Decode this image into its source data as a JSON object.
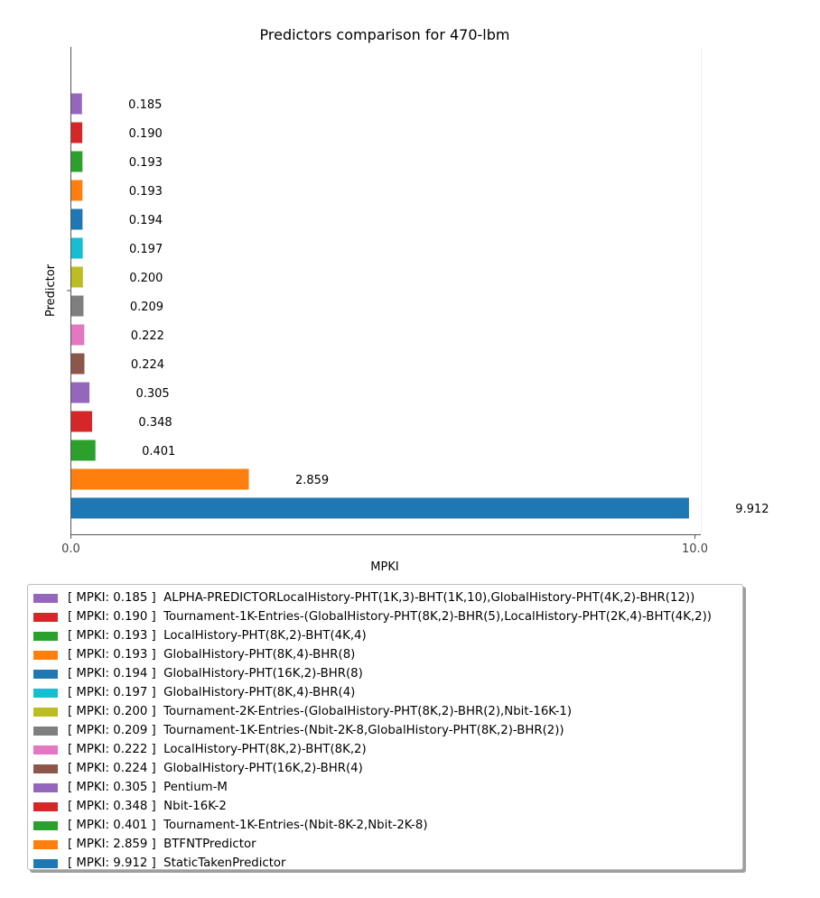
{
  "chart_data": {
    "type": "bar",
    "orientation": "horizontal",
    "title": "Predictors comparison for 470-lbm",
    "xlabel": "MPKI",
    "ylabel": "Predictor",
    "xlim": [
      0,
      10.3
    ],
    "xticks": [
      0.0,
      10.0
    ],
    "xtick_labels": [
      "0.0",
      "10.0"
    ],
    "grid": false,
    "legend_position": "bottom",
    "legend_prefix": "[ MPKI: ",
    "legend_suffix": " ]",
    "bars": [
      {
        "name": "ALPHA-PREDICTORLocalHistory-PHT(1K,3)-BHT(1K,10),GlobalHistory-PHT(4K,2)-BHR(12))",
        "value": 0.185,
        "label": "0.185",
        "color": "#9467bd"
      },
      {
        "name": "Tournament-1K-Entries-(GlobalHistory-PHT(8K,2)-BHR(5),LocalHistory-PHT(2K,4)-BHT(4K,2))",
        "value": 0.19,
        "label": "0.190",
        "color": "#d62728"
      },
      {
        "name": "LocalHistory-PHT(8K,2)-BHT(4K,4)",
        "value": 0.193,
        "label": "0.193",
        "color": "#2ca02c"
      },
      {
        "name": "GlobalHistory-PHT(8K,4)-BHR(8)",
        "value": 0.193,
        "label": "0.193",
        "color": "#ff7f0e"
      },
      {
        "name": "GlobalHistory-PHT(16K,2)-BHR(8)",
        "value": 0.194,
        "label": "0.194",
        "color": "#1f77b4"
      },
      {
        "name": "GlobalHistory-PHT(8K,4)-BHR(4)",
        "value": 0.197,
        "label": "0.197",
        "color": "#17becf"
      },
      {
        "name": "Tournament-2K-Entries-(GlobalHistory-PHT(8K,2)-BHR(2),Nbit-16K-1)",
        "value": 0.2,
        "label": "0.200",
        "color": "#bcbd22"
      },
      {
        "name": "Tournament-1K-Entries-(Nbit-2K-8,GlobalHistory-PHT(8K,2)-BHR(2))",
        "value": 0.209,
        "label": "0.209",
        "color": "#7f7f7f"
      },
      {
        "name": "LocalHistory-PHT(8K,2)-BHT(8K,2)",
        "value": 0.222,
        "label": "0.222",
        "color": "#e377c2"
      },
      {
        "name": "GlobalHistory-PHT(16K,2)-BHR(4)",
        "value": 0.224,
        "label": "0.224",
        "color": "#8c564b"
      },
      {
        "name": "Pentium-M",
        "value": 0.305,
        "label": "0.305",
        "color": "#9467bd"
      },
      {
        "name": "Nbit-16K-2",
        "value": 0.348,
        "label": "0.348",
        "color": "#d62728"
      },
      {
        "name": "Tournament-1K-Entries-(Nbit-8K-2,Nbit-2K-8)",
        "value": 0.401,
        "label": "0.401",
        "color": "#2ca02c"
      },
      {
        "name": "BTFNTPredictor",
        "value": 2.859,
        "label": "2.859",
        "color": "#ff7f0e"
      },
      {
        "name": "StaticTakenPredictor",
        "value": 9.912,
        "label": "9.912",
        "color": "#1f77b4"
      }
    ]
  }
}
